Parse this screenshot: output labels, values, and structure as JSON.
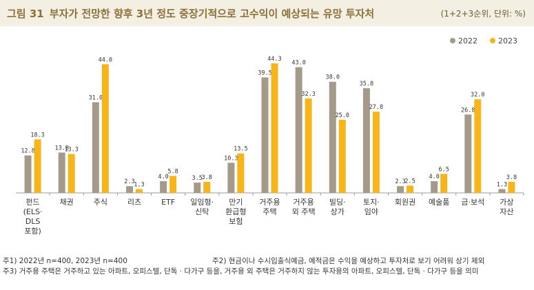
{
  "header": {
    "figure_no": "그림 31",
    "title": "부자가 전망한 향후 3년 정도 중장기적으로 고수익이 예상되는 유망 투자처",
    "unit": "(1+2+3순위, 단위: %)"
  },
  "colors": {
    "y2022": "#a59a8a",
    "y2023": "#f7b51a",
    "header_bg": "#f3efe3",
    "title": "#8c7038"
  },
  "chart_data": {
    "type": "bar",
    "title": "부자가 전망한 향후 3년 정도 중장기적으로 고수익이 예상되는 유망 투자처",
    "ylabel": "%",
    "ylim": [
      0,
      50
    ],
    "legend": "top-right",
    "categories": [
      [
        "펀드",
        "(ELS·",
        "DLS",
        "포함)"
      ],
      [
        "채권"
      ],
      [
        "주식"
      ],
      [
        "리츠"
      ],
      [
        "ETF"
      ],
      [
        "일임형·",
        "신탁"
      ],
      [
        "만기",
        "환급형",
        "보험"
      ],
      [
        "거주용",
        "주택"
      ],
      [
        "거주용",
        "외 주택"
      ],
      [
        "빌딩·",
        "상가"
      ],
      [
        "토지·",
        "임야"
      ],
      [
        "회원권"
      ],
      [
        "예술품"
      ],
      [
        "금·보석"
      ],
      [
        "가상",
        "자산"
      ]
    ],
    "series": [
      {
        "name": "2022",
        "values": [
          12.8,
          13.8,
          31.0,
          2.3,
          4.0,
          3.5,
          10.3,
          39.5,
          43.0,
          38.0,
          35.8,
          2.3,
          4.0,
          26.8,
          1.3
        ]
      },
      {
        "name": "2023",
        "values": [
          18.3,
          13.3,
          44.0,
          1.3,
          5.8,
          3.8,
          13.5,
          44.3,
          32.3,
          25.0,
          27.8,
          2.5,
          6.5,
          32.0,
          3.8
        ]
      }
    ]
  },
  "notes": {
    "note1": "주1) 2022년 n=400, 2023년 n=400",
    "note2": "주2) 현금이나 수시입출식예금, 예적금은 수익을 예상하고 투자처로 보기 어려워 상기 제외",
    "note3": "주3) 거주용 주택은 거주하고 있는 아파트, 오피스텔, 단독 · 다가구 등을, 거주용 외 주택은 거주하지 않는 투자용의 아파트, 오피스텔, 단독 · 다가구 등을 의미"
  }
}
